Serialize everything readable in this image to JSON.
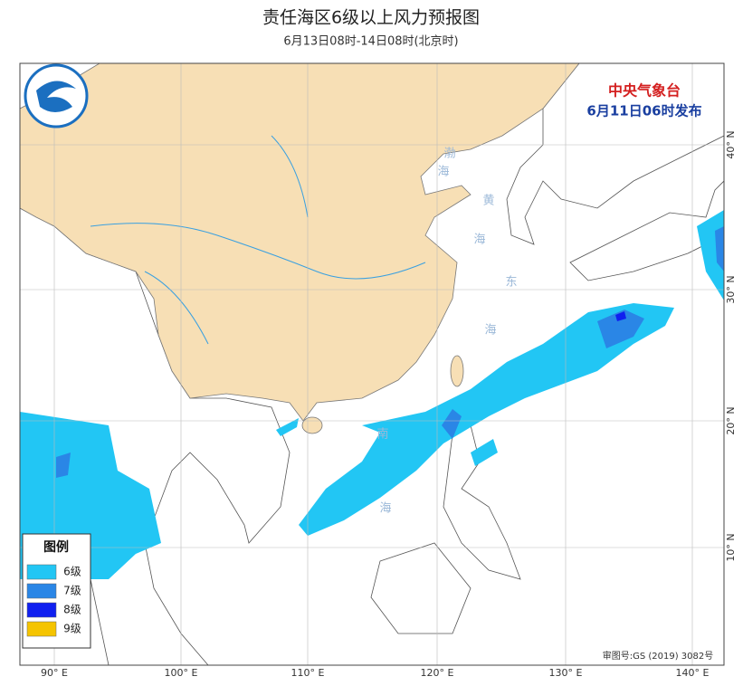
{
  "header": {
    "title": "责任海区6级以上风力预报图",
    "subtitle": "6月13日08时-14日08时(北京时)"
  },
  "issuer": {
    "name": "中央气象台",
    "time": "6月11日06时发布"
  },
  "legend": {
    "title": "图例",
    "items": [
      {
        "label": "6级",
        "color": "#22c6f4"
      },
      {
        "label": "7级",
        "color": "#2a86e6"
      },
      {
        "label": "8级",
        "color": "#1020f0"
      },
      {
        "label": "9级",
        "color": "#f5c400"
      }
    ]
  },
  "seas": [
    [
      "渤",
      "海"
    ],
    [
      "黄",
      "海"
    ],
    [
      "东",
      "海"
    ],
    [
      "南",
      "海"
    ]
  ],
  "lon_labels": [
    "90° E",
    "100° E",
    "110° E",
    "120° E",
    "130° E",
    "140° E"
  ],
  "lat_labels": [
    "40° N",
    "30° N",
    "20° N",
    "10° N"
  ],
  "approval": "审图号:GS (2019) 3082号"
}
